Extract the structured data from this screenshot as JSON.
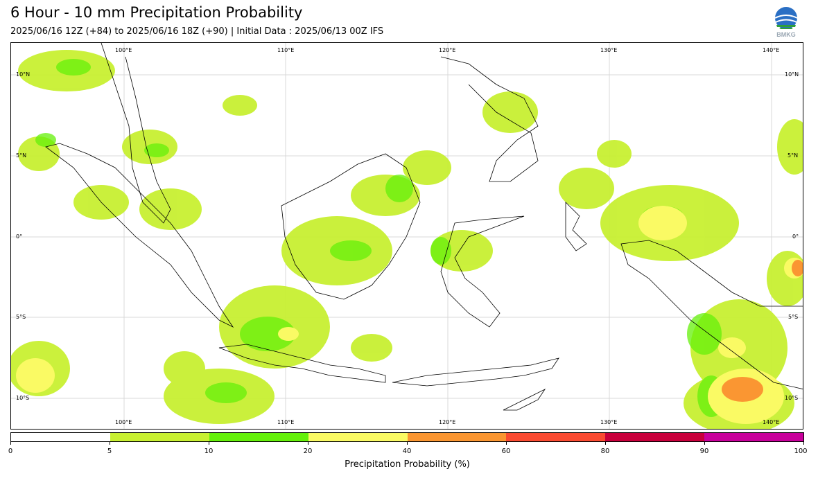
{
  "header": {
    "title": "6 Hour - 10 mm Precipitation Probability",
    "subtitle": "2025/06/16 12Z (+84) to 2025/06/16 18Z (+90) | Initial Data : 2025/06/13 00Z IFS",
    "logo_text": "BMKG"
  },
  "map": {
    "region": "Indonesia / Maritime Continent",
    "lon_range": [
      95,
      144
    ],
    "lat_range": [
      -12,
      12
    ],
    "grid": true,
    "longitude_labels": [
      "100°E",
      "110°E",
      "120°E",
      "130°E",
      "140°E"
    ],
    "latitude_labels_left": [
      "10°N",
      "5°N",
      "0°",
      "5°S",
      "10°S"
    ],
    "latitude_labels_right": [
      "10°N",
      "5°N",
      "0°",
      "5°S",
      "10°S"
    ],
    "land_color": "#ffffff",
    "coastline_color": "#000000"
  },
  "colorbar": {
    "label": "Precipitation Probability (%)",
    "ticks": [
      "0",
      "5",
      "10",
      "20",
      "40",
      "60",
      "80",
      "90",
      "100"
    ],
    "colors": [
      "#ffffff",
      "#c8f032",
      "#64f00a",
      "#fafa64",
      "#fa9632",
      "#fa4b32",
      "#c8003c",
      "#c8009b"
    ]
  }
}
